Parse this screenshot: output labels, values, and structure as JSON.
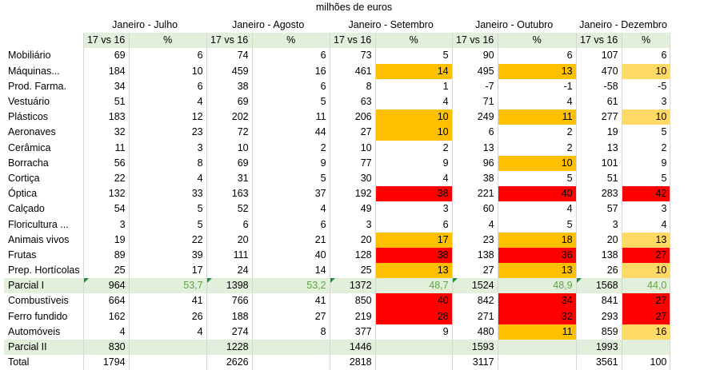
{
  "unit": "milhões de euros",
  "periods": [
    "Janeiro - Julho",
    "Janeiro - Agosto",
    "Janeiro - Setembro",
    "Janeiro - Outubro",
    "Janeiro - Dezembro"
  ],
  "subheaders": [
    "17 vs 16",
    "%"
  ],
  "colors": {
    "orange": "#ffc000",
    "red": "#ff0000",
    "yellow": "#ffd966",
    "light_green": "#e2efda",
    "green_text": "#5ea545"
  },
  "rows": [
    {
      "label": "Mobiliário",
      "cells": [
        [
          "69",
          "6"
        ],
        [
          "74",
          "6"
        ],
        [
          "73",
          "5"
        ],
        [
          "90",
          "6"
        ],
        [
          "107",
          "6"
        ]
      ],
      "hl": [
        "",
        "",
        "",
        "",
        ""
      ]
    },
    {
      "label": "Máquinas...",
      "cells": [
        [
          "184",
          "10"
        ],
        [
          "459",
          "16"
        ],
        [
          "461",
          "14"
        ],
        [
          "495",
          "13"
        ],
        [
          "470",
          "10"
        ]
      ],
      "hl": [
        "",
        "",
        "orange",
        "orange",
        "yellow"
      ]
    },
    {
      "label": "Prod. Farma.",
      "cells": [
        [
          "34",
          "6"
        ],
        [
          "38",
          "6"
        ],
        [
          "8",
          "1"
        ],
        [
          "-7",
          "-1"
        ],
        [
          "-58",
          "-5"
        ]
      ],
      "hl": [
        "",
        "",
        "",
        "",
        ""
      ]
    },
    {
      "label": "Vestuário",
      "cells": [
        [
          "51",
          "4"
        ],
        [
          "69",
          "5"
        ],
        [
          "63",
          "4"
        ],
        [
          "71",
          "4"
        ],
        [
          "61",
          "3"
        ]
      ],
      "hl": [
        "",
        "",
        "",
        "",
        ""
      ]
    },
    {
      "label": "Plásticos",
      "cells": [
        [
          "183",
          "12"
        ],
        [
          "202",
          "11"
        ],
        [
          "206",
          "10"
        ],
        [
          "249",
          "11"
        ],
        [
          "277",
          "10"
        ]
      ],
      "hl": [
        "",
        "",
        "orange",
        "orange",
        "yellow"
      ]
    },
    {
      "label": "Aeronaves",
      "cells": [
        [
          "32",
          "23"
        ],
        [
          "72",
          "44"
        ],
        [
          "27",
          "10"
        ],
        [
          "6",
          "2"
        ],
        [
          "19",
          "5"
        ]
      ],
      "hl": [
        "",
        "",
        "orange",
        "",
        ""
      ]
    },
    {
      "label": "Cerâmica",
      "cells": [
        [
          "11",
          "3"
        ],
        [
          "10",
          "2"
        ],
        [
          "10",
          "2"
        ],
        [
          "13",
          "2"
        ],
        [
          "13",
          "2"
        ]
      ],
      "hl": [
        "",
        "",
        "",
        "",
        ""
      ]
    },
    {
      "label": "Borracha",
      "cells": [
        [
          "56",
          "8"
        ],
        [
          "69",
          "9"
        ],
        [
          "77",
          "9"
        ],
        [
          "96",
          "10"
        ],
        [
          "101",
          "9"
        ]
      ],
      "hl": [
        "",
        "",
        "",
        "orange",
        ""
      ]
    },
    {
      "label": "Cortiça",
      "cells": [
        [
          "22",
          "4"
        ],
        [
          "31",
          "5"
        ],
        [
          "30",
          "4"
        ],
        [
          "38",
          "5"
        ],
        [
          "51",
          "5"
        ]
      ],
      "hl": [
        "",
        "",
        "",
        "",
        ""
      ]
    },
    {
      "label": "Óptica",
      "cells": [
        [
          "132",
          "33"
        ],
        [
          "163",
          "37"
        ],
        [
          "192",
          "38"
        ],
        [
          "221",
          "40"
        ],
        [
          "283",
          "42"
        ]
      ],
      "hl": [
        "",
        "",
        "red",
        "red",
        "red"
      ]
    },
    {
      "label": "Calçado",
      "cells": [
        [
          "54",
          "5"
        ],
        [
          "52",
          "4"
        ],
        [
          "49",
          "3"
        ],
        [
          "60",
          "4"
        ],
        [
          "57",
          "3"
        ]
      ],
      "hl": [
        "",
        "",
        "",
        "",
        ""
      ]
    },
    {
      "label": "Floricultura ...",
      "cells": [
        [
          "3",
          "5"
        ],
        [
          "6",
          "6"
        ],
        [
          "3",
          "6"
        ],
        [
          "4",
          "5"
        ],
        [
          "3",
          "4"
        ]
      ],
      "hl": [
        "",
        "",
        "",
        "",
        ""
      ]
    },
    {
      "label": "Animais vivos",
      "cells": [
        [
          "19",
          "22"
        ],
        [
          "20",
          "21"
        ],
        [
          "20",
          "17"
        ],
        [
          "23",
          "18"
        ],
        [
          "20",
          "13"
        ]
      ],
      "hl": [
        "",
        "",
        "orange",
        "orange",
        "yellow"
      ]
    },
    {
      "label": "Frutas",
      "cells": [
        [
          "89",
          "39"
        ],
        [
          "111",
          "40"
        ],
        [
          "128",
          "38"
        ],
        [
          "138",
          "36"
        ],
        [
          "138",
          "27"
        ]
      ],
      "hl": [
        "",
        "",
        "red",
        "red",
        "red"
      ]
    },
    {
      "label": "Prep. Hortícolas",
      "cells": [
        [
          "25",
          "17"
        ],
        [
          "24",
          "14"
        ],
        [
          "25",
          "13"
        ],
        [
          "27",
          "13"
        ],
        [
          "26",
          "10"
        ]
      ],
      "hl": [
        "",
        "",
        "orange",
        "orange",
        "yellow"
      ]
    },
    {
      "label": "Parcial I",
      "partial": true,
      "cells": [
        [
          "964",
          "53,7"
        ],
        [
          "1398",
          "53,2"
        ],
        [
          "1372",
          "48,7"
        ],
        [
          "1524",
          "48,9"
        ],
        [
          "1568",
          "44,0"
        ]
      ],
      "hl": [
        "",
        "",
        "",
        "",
        ""
      ]
    },
    {
      "label": "Combustíveis",
      "cells": [
        [
          "664",
          "41"
        ],
        [
          "766",
          "41"
        ],
        [
          "850",
          "40"
        ],
        [
          "842",
          "34"
        ],
        [
          "841",
          "27"
        ]
      ],
      "hl": [
        "",
        "",
        "red",
        "red",
        "red"
      ]
    },
    {
      "label": "Ferro fundido",
      "cells": [
        [
          "162",
          "26"
        ],
        [
          "188",
          "27"
        ],
        [
          "219",
          "28"
        ],
        [
          "271",
          "32"
        ],
        [
          "293",
          "27"
        ]
      ],
      "hl": [
        "",
        "",
        "red",
        "red",
        "red"
      ]
    },
    {
      "label": "Automóveis",
      "cells": [
        [
          "4",
          "4"
        ],
        [
          "274",
          "8"
        ],
        [
          "377",
          "9"
        ],
        [
          "480",
          "11"
        ],
        [
          "859",
          "16"
        ]
      ],
      "hl": [
        "",
        "",
        "",
        "orange",
        "yellow"
      ]
    },
    {
      "label": "Parcial II",
      "partial2": true,
      "cells": [
        [
          "830",
          ""
        ],
        [
          "1228",
          ""
        ],
        [
          "1446",
          ""
        ],
        [
          "1593",
          ""
        ],
        [
          "1993",
          ""
        ]
      ],
      "hl": [
        "",
        "",
        "",
        "",
        ""
      ]
    },
    {
      "label": "Total",
      "cells": [
        [
          "1794",
          ""
        ],
        [
          "2626",
          ""
        ],
        [
          "2818",
          ""
        ],
        [
          "3117",
          ""
        ],
        [
          "3561",
          "100"
        ]
      ],
      "hl": [
        "",
        "",
        "",
        "",
        ""
      ]
    }
  ]
}
